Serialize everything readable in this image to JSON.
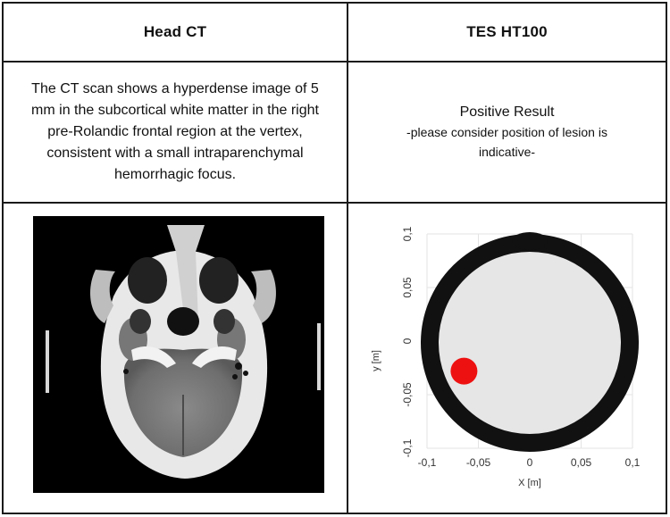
{
  "table": {
    "col1_header": "Head CT",
    "col2_header": "TES HT100",
    "ct_description": "The CT scan shows a hyperdense image of 5 mm in the subcortical white matter in the right pre-Rolandic frontal region at the vertex, consistent with a small intraparenchymal hemorrhagic focus.",
    "tes_result_main": "Positive Result",
    "tes_result_note": "-please consider position of lesion is indicative-"
  },
  "ct_image": {
    "icon": "head-ct-axial-scan"
  },
  "chart_data": {
    "type": "scatter",
    "title": "",
    "xlabel": "X [m]",
    "ylabel": "y [m]",
    "xlim": [
      -0.1,
      0.1
    ],
    "ylim": [
      -0.1,
      0.1
    ],
    "xticks": [
      "-0,1",
      "-0,05",
      "0",
      "0,05",
      "0,1"
    ],
    "yticks": [
      "-0,1",
      "-0,05",
      "0",
      "0,05",
      "0,1"
    ],
    "grid": true,
    "head_outline": {
      "fill": "#e6e6e6",
      "stroke": "#111111"
    },
    "lesion": {
      "x": -0.064,
      "y": -0.028,
      "color": "#ee1111"
    }
  }
}
